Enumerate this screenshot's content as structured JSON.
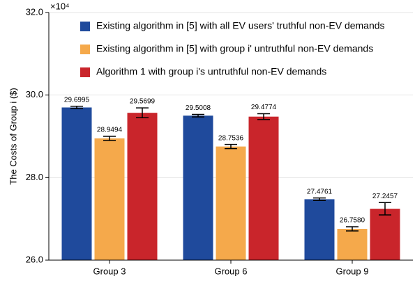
{
  "chart_data": {
    "type": "bar",
    "y_label": "The Costs of Group i ($)",
    "y_multiplier": "×10⁴",
    "categories": [
      "Group 3",
      "Group 6",
      "Group 9"
    ],
    "series": [
      {
        "name": "Existing algorithm in [5] with all EV users' truthful non-EV demands",
        "color": "#1f4a9c",
        "values": [
          29.6995,
          29.5008,
          27.4761
        ],
        "value_labels": [
          "29.6995",
          "29.5008",
          "27.4761"
        ],
        "errors": [
          0.03,
          0.03,
          0.03
        ]
      },
      {
        "name": "Existing algorithm in [5] with group i' untruthful non-EV demands",
        "color": "#f5a94b",
        "values": [
          28.9494,
          28.7536,
          26.758
        ],
        "value_labels": [
          "28.9494",
          "28.7536",
          "26.7580"
        ],
        "errors": [
          0.05,
          0.05,
          0.05
        ]
      },
      {
        "name": "Algorithm 1 with group i's untruthful non-EV demands",
        "color": "#c9252b",
        "values": [
          29.5699,
          29.4774,
          27.2457
        ],
        "value_labels": [
          "29.5699",
          "29.4774",
          "27.2457"
        ],
        "errors": [
          0.12,
          0.07,
          0.15
        ]
      }
    ],
    "ylim": [
      26,
      32
    ],
    "yticks": [
      {
        "value": 26,
        "label": "26.0"
      },
      {
        "value": 28,
        "label": "28.0"
      },
      {
        "value": 30,
        "label": "30.0"
      },
      {
        "value": 32,
        "label": "32.0"
      }
    ],
    "grid": true
  }
}
